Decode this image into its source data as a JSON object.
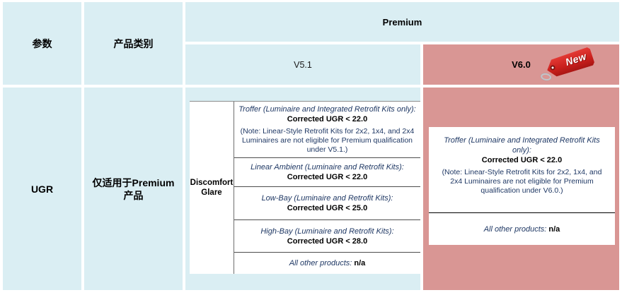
{
  "colors": {
    "light_blue": "#daeef3",
    "rose": "#d99694",
    "tag_red": "#c81f1c",
    "note_text": "#1f3864"
  },
  "header": {
    "param_label": "参数",
    "category_label": "产品类别",
    "premium_label": "Premium",
    "v51_label": "V5.1",
    "v60_label": "V6.0",
    "new_badge_label": "New"
  },
  "body": {
    "param_value": "UGR",
    "category_line1": "仅适用于Premium",
    "category_line2": "产品"
  },
  "v51_panel": {
    "glare_label": "Discomfort Glare",
    "rows": [
      {
        "category": "Troffer (Luminaire and Integrated Retrofit Kits only):",
        "value": "Corrected UGR < 22.0",
        "note": "(Note: Linear-Style Retrofit Kits for 2x2, 1x4, and 2x4 Luminaires are not eligible for Premium qualification under V5.1.)"
      },
      {
        "category": "Linear Ambient (Luminaire and Retrofit Kits):",
        "value": "Corrected UGR < 22.0"
      },
      {
        "category": "Low-Bay (Luminaire and Retrofit Kits):",
        "value": "Corrected UGR < 25.0"
      },
      {
        "category": "High-Bay (Luminaire and Retrofit Kits):",
        "value": "Corrected UGR < 28.0"
      },
      {
        "category": "All other products: ",
        "value": "n/a"
      }
    ]
  },
  "v60_panel": {
    "rows": [
      {
        "category": "Troffer (Luminaire and Integrated Retrofit Kits only):",
        "value": "Corrected UGR < 22.0",
        "note": "(Note: Linear-Style Retrofit Kits for 2x2, 1x4, and 2x4 Luminaires are not eligible for Premium qualification under V6.0.)"
      },
      {
        "category": "All other products: ",
        "value": "n/a"
      }
    ]
  }
}
